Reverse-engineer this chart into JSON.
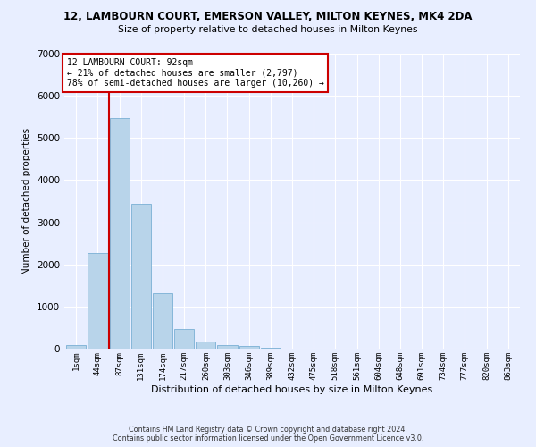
{
  "title": "12, LAMBOURN COURT, EMERSON VALLEY, MILTON KEYNES, MK4 2DA",
  "subtitle": "Size of property relative to detached houses in Milton Keynes",
  "xlabel": "Distribution of detached houses by size in Milton Keynes",
  "ylabel": "Number of detached properties",
  "footer_line1": "Contains HM Land Registry data © Crown copyright and database right 2024.",
  "footer_line2": "Contains public sector information licensed under the Open Government Licence v3.0.",
  "categories": [
    "1sqm",
    "44sqm",
    "87sqm",
    "131sqm",
    "174sqm",
    "217sqm",
    "260sqm",
    "303sqm",
    "346sqm",
    "389sqm",
    "432sqm",
    "475sqm",
    "518sqm",
    "561sqm",
    "604sqm",
    "648sqm",
    "691sqm",
    "734sqm",
    "777sqm",
    "820sqm",
    "863sqm"
  ],
  "values": [
    80,
    2270,
    5470,
    3430,
    1310,
    460,
    160,
    90,
    55,
    30,
    10,
    5,
    2,
    1,
    0,
    0,
    0,
    0,
    0,
    0,
    0
  ],
  "bar_color": "#b8d4ea",
  "bar_edgecolor": "#7ab0d4",
  "annotation_box_text": "12 LAMBOURN COURT: 92sqm\n← 21% of detached houses are smaller (2,797)\n78% of semi-detached houses are larger (10,260) →",
  "vline_color": "#cc0000",
  "vline_x": 1.5,
  "annotation_box_color": "#ffffff",
  "annotation_box_edgecolor": "#cc0000",
  "bg_color": "#e8eeff",
  "grid_color": "#ffffff",
  "ylim": [
    0,
    7000
  ],
  "yticks": [
    0,
    1000,
    2000,
    3000,
    4000,
    5000,
    6000,
    7000
  ]
}
